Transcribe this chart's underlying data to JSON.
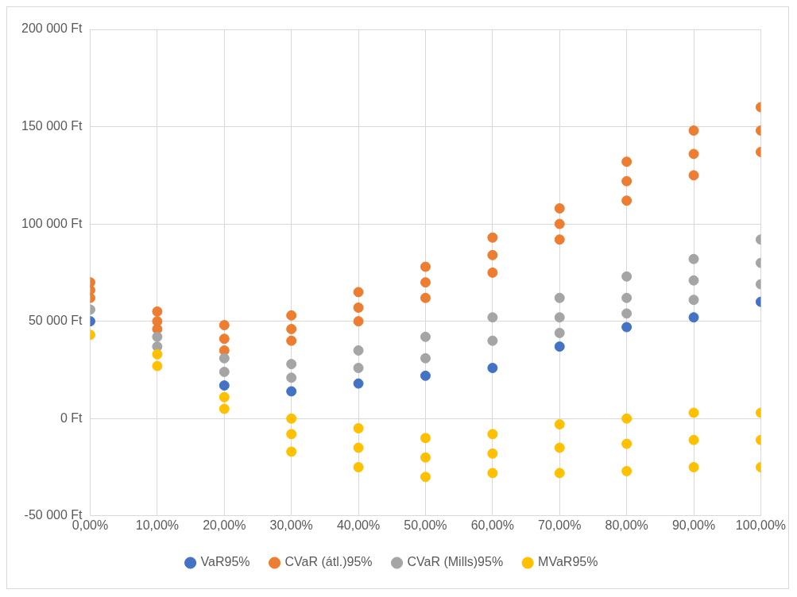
{
  "chart_data": {
    "type": "scatter",
    "legend": "bottom",
    "grid": true,
    "marker": "circle",
    "xlim": [
      0,
      100
    ],
    "xticks": [
      {
        "value": 0,
        "label": "0,00%"
      },
      {
        "value": 10,
        "label": "10,00%"
      },
      {
        "value": 20,
        "label": "20,00%"
      },
      {
        "value": 30,
        "label": "30,00%"
      },
      {
        "value": 40,
        "label": "40,00%"
      },
      {
        "value": 50,
        "label": "50,00%"
      },
      {
        "value": 60,
        "label": "60,00%"
      },
      {
        "value": 70,
        "label": "70,00%"
      },
      {
        "value": 80,
        "label": "80,00%"
      },
      {
        "value": 90,
        "label": "90,00%"
      },
      {
        "value": 100,
        "label": "100,00%"
      }
    ],
    "ylim": [
      -50000,
      200000
    ],
    "yticks": [
      {
        "value": -50000,
        "label": "-50 000 Ft"
      },
      {
        "value": 0,
        "label": "0 Ft"
      },
      {
        "value": 50000,
        "label": "50 000 Ft"
      },
      {
        "value": 100000,
        "label": "100 000 Ft"
      },
      {
        "value": 150000,
        "label": "150 000 Ft"
      },
      {
        "value": 200000,
        "label": "200 000 Ft"
      }
    ],
    "series": [
      {
        "name": "VaR95%",
        "color": "#4472c4",
        "x": [
          0,
          20,
          30,
          40,
          50,
          60,
          70,
          80,
          90,
          100
        ],
        "values": [
          50000,
          17000,
          14000,
          18000,
          22000,
          26000,
          37000,
          47000,
          52000,
          60000
        ]
      },
      {
        "name": "CVaR (átl.)95%",
        "color": "#ed7d31",
        "x": [
          0,
          0,
          0,
          10,
          10,
          10,
          20,
          20,
          20,
          30,
          30,
          30,
          40,
          40,
          40,
          50,
          50,
          50,
          60,
          60,
          60,
          70,
          70,
          70,
          80,
          80,
          80,
          90,
          90,
          90,
          100,
          100,
          100
        ],
        "values": [
          70000,
          66000,
          62000,
          55000,
          50000,
          46000,
          48000,
          41000,
          35000,
          53000,
          46000,
          40000,
          65000,
          57000,
          50000,
          78000,
          70000,
          62000,
          93000,
          84000,
          75000,
          108000,
          100000,
          92000,
          132000,
          122000,
          112000,
          148000,
          136000,
          125000,
          160000,
          148000,
          137000
        ]
      },
      {
        "name": "CVaR (Mills)95%",
        "color": "#a5a5a5",
        "x": [
          0,
          10,
          10,
          20,
          20,
          30,
          30,
          40,
          40,
          50,
          50,
          60,
          60,
          70,
          70,
          70,
          80,
          80,
          80,
          90,
          90,
          90,
          100,
          100,
          100
        ],
        "values": [
          56000,
          42000,
          37000,
          31000,
          24000,
          28000,
          21000,
          35000,
          26000,
          42000,
          31000,
          52000,
          40000,
          62000,
          52000,
          44000,
          73000,
          62000,
          54000,
          82000,
          71000,
          61000,
          92000,
          80000,
          69000
        ]
      },
      {
        "name": "MVaR95%",
        "color": "#ffc000",
        "x": [
          0,
          10,
          10,
          20,
          20,
          30,
          30,
          30,
          40,
          40,
          40,
          50,
          50,
          50,
          60,
          60,
          60,
          70,
          70,
          70,
          80,
          80,
          80,
          90,
          90,
          90,
          100,
          100,
          100
        ],
        "values": [
          43000,
          33000,
          27000,
          11000,
          5000,
          0,
          -8000,
          -17000,
          -5000,
          -15000,
          -25000,
          -10000,
          -20000,
          -30000,
          -8000,
          -18000,
          -28000,
          -3000,
          -15000,
          -28000,
          0,
          -13000,
          -27000,
          3000,
          -11000,
          -25000,
          3000,
          -11000,
          -25000
        ]
      }
    ]
  }
}
